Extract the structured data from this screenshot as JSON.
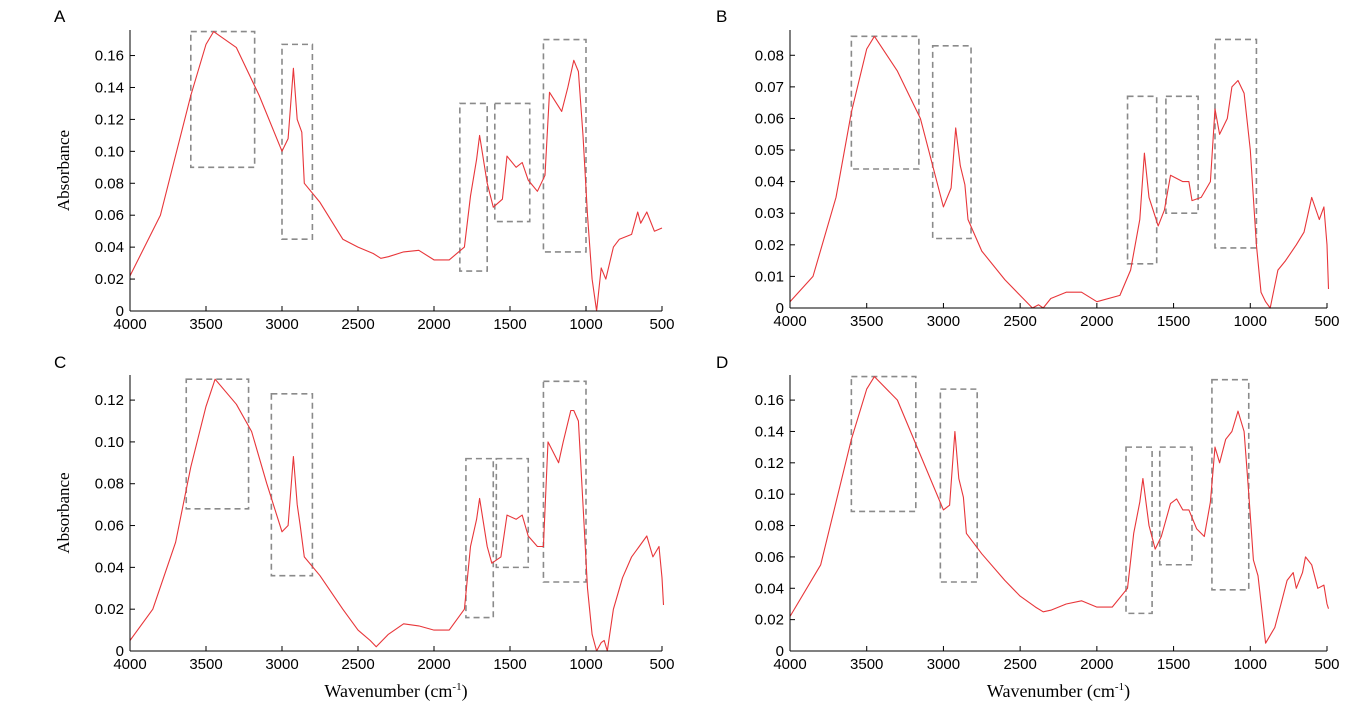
{
  "figure": {
    "x_axis_label": "Wavenumber (cm",
    "x_axis_label_sup": "-1",
    "x_axis_label_end": ")",
    "y_axis_label": "Absorbance"
  },
  "colors": {
    "spectrum": "#e8363a",
    "axis": "#000000",
    "box": "#8a8a8a"
  },
  "chart_data": [
    {
      "type": "line",
      "panel_label": "A",
      "x": [
        4000,
        3800,
        3600,
        3500,
        3450,
        3300,
        3150,
        3000,
        2960,
        2925,
        2900,
        2870,
        2853,
        2750,
        2600,
        2500,
        2400,
        2350,
        2300,
        2200,
        2100,
        2000,
        1900,
        1800,
        1760,
        1720,
        1700,
        1650,
        1610,
        1550,
        1520,
        1460,
        1420,
        1380,
        1320,
        1270,
        1240,
        1160,
        1120,
        1080,
        1050,
        1020,
        990,
        960,
        930,
        900,
        870,
        820,
        780,
        700,
        660,
        640,
        600,
        550,
        500
      ],
      "y": [
        0.022,
        0.06,
        0.135,
        0.167,
        0.175,
        0.165,
        0.135,
        0.1,
        0.108,
        0.152,
        0.12,
        0.112,
        0.08,
        0.068,
        0.045,
        0.04,
        0.036,
        0.033,
        0.034,
        0.037,
        0.038,
        0.032,
        0.032,
        0.04,
        0.072,
        0.095,
        0.11,
        0.08,
        0.065,
        0.07,
        0.097,
        0.09,
        0.093,
        0.082,
        0.075,
        0.085,
        0.137,
        0.125,
        0.14,
        0.157,
        0.15,
        0.11,
        0.06,
        0.02,
        0.0,
        0.027,
        0.02,
        0.04,
        0.045,
        0.048,
        0.062,
        0.055,
        0.062,
        0.05,
        0.052
      ],
      "x_range": [
        4000,
        500
      ],
      "x_ticks": [
        "4000",
        "3500",
        "3000",
        "2500",
        "2000",
        "1500",
        "1000",
        "500"
      ],
      "y_range": [
        0,
        0.176
      ],
      "y_ticks": [
        "0",
        "0.02",
        "0.04",
        "0.06",
        "0.08",
        "0.10",
        "0.12",
        "0.14",
        "0.16"
      ],
      "y_label_shown": true,
      "x_label_shown": false,
      "highlight_boxes": [
        [
          3600,
          3180,
          0.09,
          0.175
        ],
        [
          3000,
          2800,
          0.045,
          0.167
        ],
        [
          1830,
          1650,
          0.025,
          0.13
        ],
        [
          1600,
          1370,
          0.056,
          0.13
        ],
        [
          1280,
          1000,
          0.037,
          0.17
        ]
      ]
    },
    {
      "type": "line",
      "panel_label": "B",
      "x": [
        4000,
        3850,
        3700,
        3600,
        3500,
        3450,
        3300,
        3150,
        3000,
        2950,
        2920,
        2890,
        2860,
        2840,
        2750,
        2600,
        2500,
        2420,
        2380,
        2350,
        2300,
        2200,
        2100,
        2000,
        1850,
        1780,
        1720,
        1690,
        1660,
        1600,
        1560,
        1520,
        1440,
        1400,
        1380,
        1320,
        1260,
        1230,
        1200,
        1150,
        1120,
        1080,
        1040,
        1000,
        960,
        930,
        900,
        870,
        820,
        770,
        700,
        650,
        600,
        550,
        520,
        500,
        490
      ],
      "y": [
        0.002,
        0.01,
        0.035,
        0.062,
        0.082,
        0.086,
        0.075,
        0.06,
        0.032,
        0.038,
        0.057,
        0.045,
        0.039,
        0.028,
        0.018,
        0.009,
        0.004,
        0.0,
        0.001,
        0.0,
        0.003,
        0.005,
        0.005,
        0.002,
        0.004,
        0.012,
        0.028,
        0.049,
        0.035,
        0.026,
        0.031,
        0.042,
        0.04,
        0.04,
        0.034,
        0.035,
        0.04,
        0.063,
        0.055,
        0.06,
        0.07,
        0.072,
        0.068,
        0.05,
        0.02,
        0.005,
        0.002,
        0.0,
        0.012,
        0.015,
        0.02,
        0.024,
        0.035,
        0.028,
        0.032,
        0.02,
        0.006
      ],
      "x_range": [
        4000,
        500
      ],
      "x_ticks": [
        "4000",
        "3500",
        "3000",
        "2500",
        "2000",
        "1500",
        "1000",
        "500"
      ],
      "y_range": [
        0,
        0.088
      ],
      "y_ticks": [
        "0",
        "0.01",
        "0.02",
        "0.03",
        "0.04",
        "0.05",
        "0.06",
        "0.07",
        "0.08"
      ],
      "y_label_shown": false,
      "x_label_shown": false,
      "highlight_boxes": [
        [
          3600,
          3160,
          0.044,
          0.086
        ],
        [
          3070,
          2820,
          0.022,
          0.083
        ],
        [
          1800,
          1610,
          0.014,
          0.067
        ],
        [
          1550,
          1340,
          0.03,
          0.067
        ],
        [
          1230,
          960,
          0.019,
          0.085
        ]
      ]
    },
    {
      "type": "line",
      "panel_label": "C",
      "x": [
        4000,
        3850,
        3700,
        3600,
        3500,
        3440,
        3300,
        3200,
        3100,
        3000,
        2960,
        2925,
        2900,
        2880,
        2853,
        2750,
        2600,
        2500,
        2420,
        2380,
        2340,
        2300,
        2200,
        2100,
        2000,
        1900,
        1800,
        1760,
        1720,
        1700,
        1650,
        1620,
        1560,
        1520,
        1460,
        1420,
        1380,
        1320,
        1280,
        1250,
        1180,
        1150,
        1100,
        1080,
        1050,
        1020,
        990,
        960,
        930,
        900,
        880,
        860,
        820,
        760,
        700,
        650,
        600,
        560,
        520,
        500,
        490
      ],
      "y": [
        0.005,
        0.02,
        0.052,
        0.088,
        0.117,
        0.13,
        0.118,
        0.105,
        0.08,
        0.057,
        0.06,
        0.093,
        0.07,
        0.06,
        0.045,
        0.036,
        0.02,
        0.01,
        0.005,
        0.002,
        0.005,
        0.008,
        0.013,
        0.012,
        0.01,
        0.01,
        0.02,
        0.05,
        0.063,
        0.073,
        0.05,
        0.042,
        0.045,
        0.065,
        0.063,
        0.065,
        0.055,
        0.05,
        0.05,
        0.1,
        0.09,
        0.1,
        0.115,
        0.115,
        0.11,
        0.07,
        0.03,
        0.008,
        0.0,
        0.004,
        0.005,
        0.0,
        0.02,
        0.035,
        0.045,
        0.05,
        0.055,
        0.045,
        0.05,
        0.035,
        0.022
      ],
      "x_range": [
        4000,
        500
      ],
      "x_ticks": [
        "4000",
        "3500",
        "3000",
        "2500",
        "2000",
        "1500",
        "1000",
        "500"
      ],
      "y_range": [
        0,
        0.132
      ],
      "y_ticks": [
        "0",
        "0.02",
        "0.04",
        "0.06",
        "0.08",
        "0.10",
        "0.12"
      ],
      "y_label_shown": true,
      "x_label_shown": true,
      "highlight_boxes": [
        [
          3630,
          3220,
          0.068,
          0.13
        ],
        [
          3070,
          2800,
          0.036,
          0.123
        ],
        [
          1790,
          1610,
          0.016,
          0.092
        ],
        [
          1590,
          1380,
          0.04,
          0.092
        ],
        [
          1280,
          1000,
          0.033,
          0.129
        ]
      ]
    },
    {
      "type": "line",
      "panel_label": "D",
      "x": [
        4000,
        3800,
        3600,
        3500,
        3450,
        3300,
        3150,
        3000,
        2960,
        2925,
        2900,
        2870,
        2850,
        2750,
        2600,
        2500,
        2400,
        2350,
        2300,
        2200,
        2100,
        2000,
        1900,
        1800,
        1760,
        1720,
        1700,
        1660,
        1620,
        1580,
        1520,
        1480,
        1440,
        1400,
        1350,
        1300,
        1260,
        1230,
        1200,
        1160,
        1120,
        1080,
        1040,
        1010,
        980,
        950,
        920,
        900,
        870,
        840,
        800,
        760,
        720,
        700,
        660,
        640,
        600,
        560,
        520,
        500,
        490
      ],
      "y": [
        0.022,
        0.055,
        0.135,
        0.167,
        0.175,
        0.16,
        0.125,
        0.09,
        0.093,
        0.14,
        0.11,
        0.098,
        0.075,
        0.062,
        0.045,
        0.035,
        0.028,
        0.025,
        0.026,
        0.03,
        0.032,
        0.028,
        0.028,
        0.04,
        0.075,
        0.095,
        0.11,
        0.08,
        0.065,
        0.073,
        0.094,
        0.097,
        0.09,
        0.09,
        0.078,
        0.073,
        0.095,
        0.13,
        0.12,
        0.135,
        0.14,
        0.153,
        0.14,
        0.1,
        0.058,
        0.048,
        0.022,
        0.005,
        0.01,
        0.015,
        0.03,
        0.045,
        0.05,
        0.04,
        0.05,
        0.06,
        0.055,
        0.04,
        0.042,
        0.03,
        0.027
      ],
      "x_range": [
        4000,
        500
      ],
      "x_ticks": [
        "4000",
        "3500",
        "3000",
        "2500",
        "2000",
        "1500",
        "1000",
        "500"
      ],
      "y_range": [
        0,
        0.176
      ],
      "y_ticks": [
        "0",
        "0.02",
        "0.04",
        "0.06",
        "0.08",
        "0.10",
        "0.12",
        "0.14",
        "0.16"
      ],
      "y_label_shown": false,
      "x_label_shown": true,
      "highlight_boxes": [
        [
          3600,
          3180,
          0.089,
          0.175
        ],
        [
          3020,
          2780,
          0.044,
          0.167
        ],
        [
          1810,
          1640,
          0.024,
          0.13
        ],
        [
          1590,
          1380,
          0.055,
          0.13
        ],
        [
          1250,
          1010,
          0.039,
          0.173
        ]
      ]
    }
  ]
}
